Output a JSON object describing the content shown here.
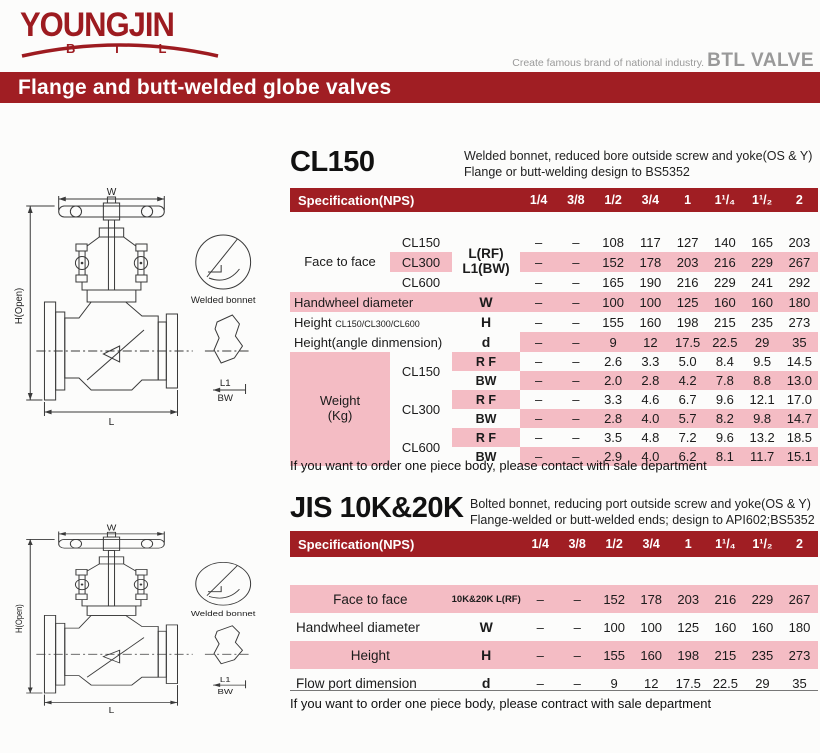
{
  "brand": {
    "logo_text": "YOUNGJIN",
    "logo_sub": "B T L",
    "tagline": "Create famous brand of national industry.",
    "tagline_brand": "BTL VALVE"
  },
  "banner": {
    "title": "Flange and butt-welded globe valves"
  },
  "colors": {
    "accent_red": "#a01e23",
    "row_pink": "#f4bcc4"
  },
  "drawing": {
    "dim_w": "W",
    "dim_h": "H(Open)",
    "dim_l": "L",
    "dim_l1": "L1",
    "dim_bw": "BW",
    "detail_label": "Welded bonnet"
  },
  "sections": {
    "cl150": {
      "title": "CL150",
      "desc1": "Welded bonnet, reduced bore outside screw and yoke(OS & Y)",
      "desc2": "Flange or butt-welding design to BS5352",
      "note": "If you want to order one piece body, please contact with sale department",
      "table": {
        "spec_header": "Specification(NPS)",
        "header_colspan": 3,
        "columns": [
          "1/4",
          "3/8",
          "1/2",
          "3/4",
          "1",
          "1¹/₄",
          "1¹/₂",
          "2"
        ],
        "rows": [
          {
            "cells": [
              {
                "t": "Face to face",
                "rs": 3,
                "c": "g",
                "n": "row-label-face-to-face"
              },
              {
                "t": "CL150",
                "c": "cl",
                "n": "row-sublabel"
              },
              {
                "t": "L(RF)\nL1(BW)",
                "rs": 3,
                "c": "sym",
                "n": "row-symbol"
              }
            ],
            "vals": [
              "–",
              "–",
              "108",
              "117",
              "127",
              "140",
              "165",
              "203"
            ],
            "vhl": false
          },
          {
            "cells": [
              {
                "t": "CL300",
                "c": "cl hl",
                "n": "row-sublabel"
              }
            ],
            "vals": [
              "–",
              "–",
              "152",
              "178",
              "203",
              "216",
              "229",
              "267"
            ],
            "vhl": true
          },
          {
            "cells": [
              {
                "t": "CL600",
                "c": "cl",
                "n": "row-sublabel"
              }
            ],
            "vals": [
              "–",
              "–",
              "165",
              "190",
              "216",
              "229",
              "241",
              "292"
            ],
            "vhl": false
          },
          {
            "rc": "hl",
            "cells": [
              {
                "t": "Handwheel diameter",
                "cs": 2,
                "c": "lab",
                "n": "row-label-handwheel"
              },
              {
                "t": "W",
                "c": "sym1",
                "n": "row-symbol"
              }
            ],
            "vals": [
              "–",
              "–",
              "100",
              "100",
              "125",
              "160",
              "160",
              "180"
            ],
            "vhl": false
          },
          {
            "cells": [
              {
                "t": "Height ",
                "t2": "CL150/CL300/CL600",
                "cs": 2,
                "c": "lab",
                "n": "row-label-height"
              },
              {
                "t": "H",
                "c": "sym1",
                "n": "row-symbol"
              }
            ],
            "vals": [
              "–",
              "–",
              "155",
              "160",
              "198",
              "215",
              "235",
              "273"
            ],
            "vhl": false
          },
          {
            "cells": [
              {
                "t": "Height(angle dinmension)",
                "cs": 2,
                "c": "lab",
                "n": "row-label-height-angle"
              },
              {
                "t": "d",
                "c": "sym1",
                "n": "row-symbol"
              }
            ],
            "vals": [
              "–",
              "–",
              "9",
              "12",
              "17.5",
              "22.5",
              "29",
              "35"
            ],
            "vhl": true
          },
          {
            "rc": "w",
            "cells": [
              {
                "t": "Weight\n(Kg)",
                "rs": 6,
                "c": "g hl",
                "n": "row-label-weight"
              },
              {
                "t": "CL150",
                "rs": 2,
                "c": "cl",
                "n": "row-sublabel"
              },
              {
                "t": "R F",
                "c": "sym0 hl",
                "n": "row-symbol"
              }
            ],
            "vals": [
              "–",
              "–",
              "2.6",
              "3.3",
              "5.0",
              "8.4",
              "9.5",
              "14.5"
            ],
            "vhl": false
          },
          {
            "rc": "w",
            "cells": [
              {
                "t": "BW",
                "c": "sym0",
                "n": "row-symbol"
              }
            ],
            "vals": [
              "–",
              "–",
              "2.0",
              "2.8",
              "4.2",
              "7.8",
              "8.8",
              "13.0"
            ],
            "vhl": true
          },
          {
            "rc": "w",
            "cells": [
              {
                "t": "CL300",
                "rs": 2,
                "c": "cl",
                "n": "row-sublabel"
              },
              {
                "t": "R F",
                "c": "sym0 hl",
                "n": "row-symbol"
              }
            ],
            "vals": [
              "–",
              "–",
              "3.3",
              "4.6",
              "6.7",
              "9.6",
              "12.1",
              "17.0"
            ],
            "vhl": false
          },
          {
            "rc": "w",
            "cells": [
              {
                "t": "BW",
                "c": "sym0",
                "n": "row-symbol"
              }
            ],
            "vals": [
              "–",
              "–",
              "2.8",
              "4.0",
              "5.7",
              "8.2",
              "9.8",
              "14.7"
            ],
            "vhl": true
          },
          {
            "rc": "w",
            "cells": [
              {
                "t": "CL600",
                "rs": 2,
                "c": "cl",
                "n": "row-sublabel"
              },
              {
                "t": "R F",
                "c": "sym0 hl",
                "n": "row-symbol"
              }
            ],
            "vals": [
              "–",
              "–",
              "3.5",
              "4.8",
              "7.2",
              "9.6",
              "13.2",
              "18.5"
            ],
            "vhl": false
          },
          {
            "rc": "w",
            "cells": [
              {
                "t": "BW",
                "c": "sym0",
                "n": "row-symbol"
              }
            ],
            "vals": [
              "–",
              "–",
              "2.9",
              "4.0",
              "6.2",
              "8.1",
              "11.7",
              "15.1"
            ],
            "vhl": true
          }
        ]
      }
    },
    "jis": {
      "title": "JIS 10K&20K",
      "desc1": "Bolted bonnet, reducing port outside screw and yoke(OS & Y)",
      "desc2": "Flange-welded or butt-welded ends; design to API602;BS5352",
      "note": "If you want to order one piece body, please contract with sale department",
      "table": {
        "spec_header": "Specification(NPS)",
        "header_colspan": 2,
        "columns": [
          "1/4",
          "3/8",
          "1/2",
          "3/4",
          "1",
          "1¹/₄",
          "1¹/₂",
          "2"
        ],
        "rows": [
          {
            "rc": "hl",
            "cells": [
              {
                "t": "Face to face",
                "c": "g2",
                "n": "row-label-face-to-face"
              },
              {
                "t": "10K&20K L(RF)",
                "c": "sym10",
                "n": "row-symbol"
              }
            ],
            "vals": [
              "–",
              "–",
              "152",
              "178",
              "203",
              "216",
              "229",
              "267"
            ],
            "vhl": false
          },
          {
            "cells": [
              {
                "t": "Handwheel diameter",
                "c": "lab2",
                "n": "row-label-handwheel"
              },
              {
                "t": "W",
                "c": "sym1",
                "n": "row-symbol"
              }
            ],
            "vals": [
              "–",
              "–",
              "100",
              "100",
              "125",
              "160",
              "160",
              "180"
            ],
            "vhl": false
          },
          {
            "rc": "hl",
            "cells": [
              {
                "t": "Height",
                "c": "g2",
                "n": "row-label-height"
              },
              {
                "t": "H",
                "c": "sym1",
                "n": "row-symbol"
              }
            ],
            "vals": [
              "–",
              "–",
              "155",
              "160",
              "198",
              "215",
              "235",
              "273"
            ],
            "vhl": false
          },
          {
            "cells": [
              {
                "t": "Flow port dimension",
                "c": "lab2",
                "n": "row-label-flow-port"
              },
              {
                "t": "d",
                "c": "sym1",
                "n": "row-symbol"
              }
            ],
            "vals": [
              "–",
              "–",
              "9",
              "12",
              "17.5",
              "22.5",
              "29",
              "35"
            ],
            "vhl": false
          }
        ]
      }
    }
  }
}
